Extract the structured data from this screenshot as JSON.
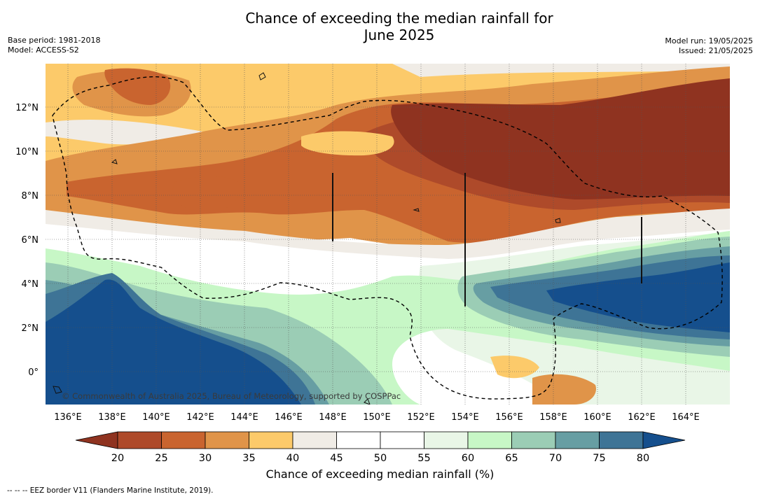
{
  "title_line1": "Chance of exceeding the median rainfall for",
  "title_line2": "June 2025",
  "meta_left": [
    "Base period: 1981-2018",
    "Model: ACCESS-S2"
  ],
  "meta_right": [
    "Model run: 19/05/2025",
    "Issued: 21/05/2025"
  ],
  "copyright": "© Commonwealth of Australia 2025, Bureau of Meteorology, supported by COSPPac",
  "lon_labels": [
    "136°E",
    "138°E",
    "140°E",
    "142°E",
    "144°E",
    "146°E",
    "148°E",
    "150°E",
    "152°E",
    "154°E",
    "156°E",
    "158°E",
    "160°E",
    "162°E",
    "164°E"
  ],
  "lat_labels": [
    "12°N",
    "10°N",
    "8°N",
    "6°N",
    "4°N",
    "2°N",
    "0°"
  ],
  "colorbar": {
    "ticks": [
      "20",
      "25",
      "30",
      "35",
      "40",
      "45",
      "50",
      "55",
      "60",
      "65",
      "70",
      "75",
      "80"
    ],
    "colors": [
      "#8f3320",
      "#ae4a2a",
      "#c9642f",
      "#e09449",
      "#fcca6a",
      "#f0ece6",
      "#ffffff",
      "#ffffff",
      "#e9f6e7",
      "#c7f7c6",
      "#9bcdb5",
      "#679ea3",
      "#3e7496",
      "#154f8d"
    ],
    "title": "Chance of exceeding median rainfall (%)"
  },
  "legend_note": "--  --  -- EEZ border V11 (Flanders Marine Institute, 2019)."
}
